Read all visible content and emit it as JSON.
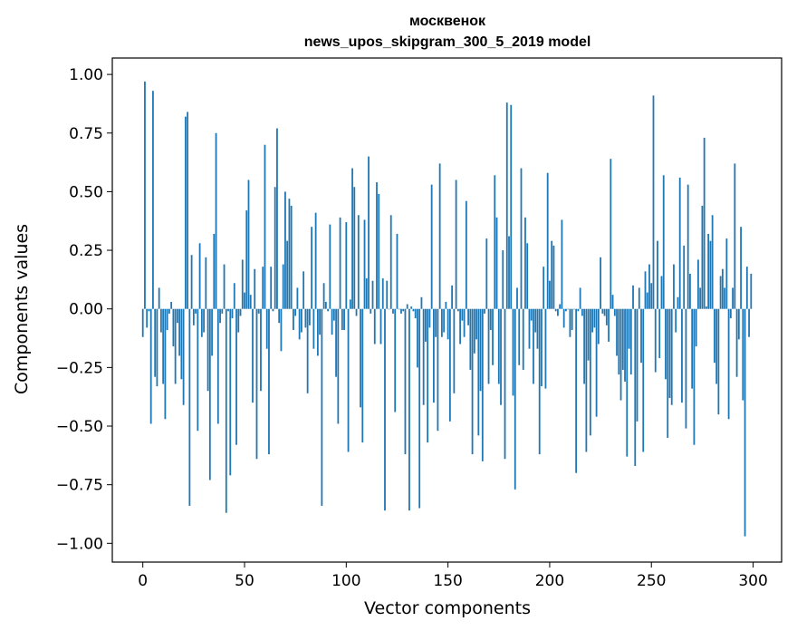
{
  "chart_data": {
    "type": "bar",
    "title": "москвенок",
    "subtitle": "news_upos_skipgram_300_5_2019 model",
    "xlabel": "Vector components",
    "ylabel": "Components values",
    "xlim": [
      -15,
      314
    ],
    "ylim": [
      -1.08,
      1.07
    ],
    "x_ticks": [
      0,
      50,
      100,
      150,
      200,
      250,
      300
    ],
    "x_tick_labels": [
      "0",
      "50",
      "100",
      "150",
      "200",
      "250",
      "300"
    ],
    "y_ticks": [
      1.0,
      0.75,
      0.5,
      0.25,
      0.0,
      -0.25,
      -0.5,
      -0.75,
      -1.0
    ],
    "y_tick_labels": [
      "1.00",
      "0.75",
      "0.50",
      "0.25",
      "0.00",
      "−0.25",
      "−0.50",
      "−0.75",
      "−1.00"
    ],
    "grid": false,
    "bar_color": "#1f77b4",
    "values": [
      -0.12,
      0.97,
      -0.08,
      -0.01,
      -0.49,
      0.93,
      -0.29,
      -0.33,
      0.09,
      -0.1,
      -0.32,
      -0.47,
      -0.09,
      -0.02,
      0.03,
      -0.16,
      -0.32,
      -0.06,
      -0.2,
      -0.3,
      -0.41,
      0.82,
      0.84,
      -0.84,
      0.23,
      -0.07,
      -0.02,
      -0.52,
      0.28,
      -0.12,
      -0.1,
      0.22,
      -0.35,
      -0.73,
      -0.2,
      0.32,
      0.75,
      -0.49,
      -0.06,
      -0.02,
      0.19,
      -0.87,
      -0.01,
      -0.71,
      -0.04,
      0.11,
      -0.58,
      -0.1,
      -0.03,
      0.21,
      0.07,
      0.42,
      0.55,
      0.06,
      -0.4,
      0.17,
      -0.64,
      -0.02,
      -0.35,
      0.18,
      0.7,
      -0.17,
      -0.62,
      0.18,
      -0.01,
      0.52,
      0.77,
      -0.06,
      -0.18,
      0.19,
      0.5,
      0.29,
      0.47,
      0.44,
      -0.09,
      -0.03,
      0.09,
      -0.13,
      -0.1,
      0.16,
      -0.08,
      -0.36,
      -0.07,
      0.35,
      -0.17,
      0.41,
      -0.2,
      -0.11,
      -0.84,
      0.11,
      0.03,
      -0.01,
      0.36,
      -0.11,
      -0.05,
      -0.29,
      -0.49,
      0.39,
      -0.09,
      -0.09,
      0.37,
      -0.61,
      0.04,
      0.6,
      0.52,
      -0.03,
      0.4,
      -0.42,
      -0.57,
      0.38,
      0.13,
      0.65,
      -0.02,
      0.12,
      -0.15,
      0.54,
      0.49,
      -0.15,
      0.13,
      -0.86,
      0.12,
      0.0,
      0.4,
      -0.02,
      -0.44,
      0.32,
      0.0,
      -0.02,
      -0.01,
      -0.62,
      0.02,
      -0.86,
      0.01,
      -0.01,
      -0.04,
      -0.25,
      -0.85,
      0.05,
      -0.41,
      -0.14,
      -0.57,
      -0.08,
      0.53,
      -0.4,
      -0.12,
      -0.52,
      0.62,
      -0.12,
      -0.1,
      0.03,
      -0.13,
      -0.48,
      0.1,
      -0.36,
      0.55,
      -0.01,
      -0.15,
      -0.05,
      -0.12,
      0.46,
      -0.07,
      -0.26,
      -0.62,
      -0.19,
      -0.13,
      -0.54,
      -0.35,
      -0.65,
      -0.02,
      0.3,
      -0.32,
      -0.09,
      -0.24,
      0.57,
      0.39,
      -0.32,
      -0.41,
      0.25,
      -0.64,
      0.88,
      0.31,
      0.87,
      -0.37,
      -0.77,
      0.09,
      -0.24,
      0.6,
      -0.26,
      0.39,
      0.28,
      -0.17,
      -0.05,
      -0.32,
      -0.1,
      -0.17,
      -0.62,
      -0.33,
      0.18,
      -0.34,
      0.58,
      0.12,
      0.29,
      0.27,
      -0.01,
      -0.03,
      0.02,
      0.38,
      -0.08,
      -0.01,
      0.0,
      -0.12,
      -0.09,
      0.0,
      -0.7,
      -0.01,
      0.09,
      -0.03,
      -0.32,
      -0.61,
      -0.22,
      -0.54,
      -0.1,
      -0.08,
      -0.46,
      -0.15,
      0.22,
      -0.02,
      -0.03,
      -0.07,
      -0.14,
      0.64,
      0.06,
      -0.03,
      -0.2,
      -0.28,
      -0.39,
      -0.26,
      -0.31,
      -0.63,
      -0.17,
      -0.28,
      0.1,
      -0.67,
      -0.48,
      0.09,
      -0.23,
      -0.61,
      0.16,
      0.07,
      0.19,
      0.11,
      0.91,
      -0.27,
      0.29,
      -0.21,
      0.14,
      0.57,
      -0.3,
      -0.55,
      -0.38,
      -0.41,
      0.19,
      -0.1,
      0.05,
      0.56,
      -0.4,
      0.27,
      -0.51,
      0.53,
      0.15,
      -0.34,
      -0.58,
      -0.16,
      0.21,
      0.09,
      0.44,
      0.73,
      0.01,
      0.32,
      0.29,
      0.4,
      -0.23,
      -0.32,
      -0.45,
      0.14,
      0.17,
      0.09,
      0.3,
      -0.47,
      -0.04,
      0.09,
      0.62,
      -0.29,
      -0.13,
      0.35,
      -0.39,
      -0.97,
      0.18,
      -0.12,
      0.15
    ]
  }
}
